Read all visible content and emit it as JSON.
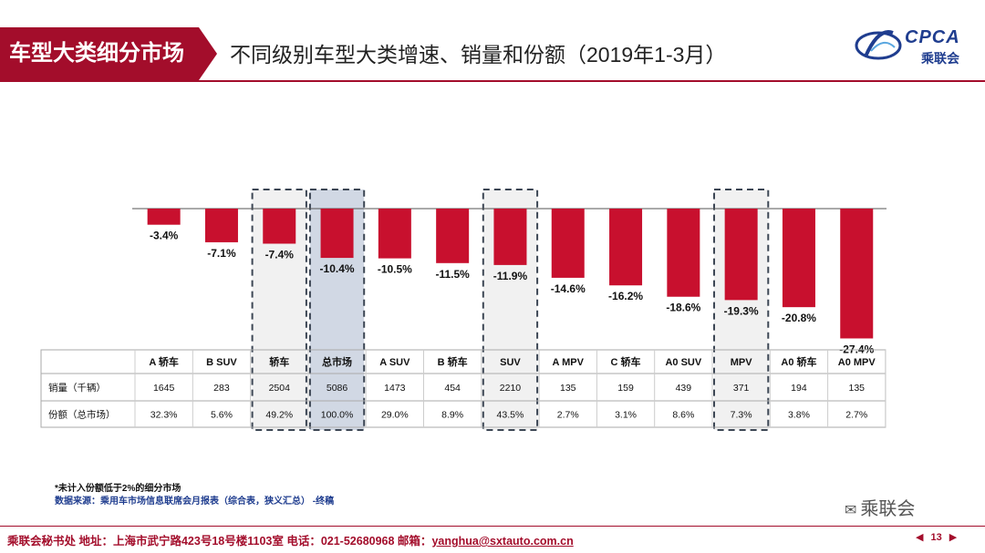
{
  "header": {
    "tag": "车型大类细分市场",
    "title": "不同级别车型大类增速、销量和份额（2019年1-3月）"
  },
  "logo": {
    "text": "CPCA",
    "sub": "乘联会",
    "brand_color": "#1f3d8f"
  },
  "chart_data": {
    "type": "bar",
    "title": "不同级别车型大类增速、销量和份额（2019年1-3月）",
    "categories": [
      "A 轿车",
      "B SUV",
      "轿车",
      "总市场",
      "A SUV",
      "B 轿车",
      "SUV",
      "A MPV",
      "C 轿车",
      "A0 SUV",
      "MPV",
      "A0 轿车",
      "A0 MPV"
    ],
    "values": [
      -3.4,
      -7.1,
      -7.4,
      -10.4,
      -10.5,
      -11.5,
      -11.9,
      -14.6,
      -16.2,
      -18.6,
      -19.3,
      -20.8,
      -27.4
    ],
    "value_labels": [
      "-3.4%",
      "-7.1%",
      "-7.4%",
      "-10.4%",
      "-10.5%",
      "-11.5%",
      "-11.9%",
      "-14.6%",
      "-16.2%",
      "-18.6%",
      "-19.3%",
      "-20.8%",
      "-27.4%"
    ],
    "ylim": [
      -30,
      0
    ],
    "bar_color": "#c8102e",
    "highlight": [
      "轿车",
      "总市场",
      "SUV",
      "MPV"
    ],
    "table_rows": [
      {
        "label": "销量（千辆）",
        "values": [
          "1645",
          "283",
          "2504",
          "5086",
          "1473",
          "454",
          "2210",
          "135",
          "159",
          "439",
          "371",
          "194",
          "135"
        ]
      },
      {
        "label": "份额（总市场）",
        "values": [
          "32.3%",
          "5.6%",
          "49.2%",
          "100.0%",
          "29.0%",
          "8.9%",
          "43.5%",
          "2.7%",
          "3.1%",
          "8.6%",
          "7.3%",
          "3.8%",
          "2.7%"
        ]
      }
    ]
  },
  "notes": {
    "line1": "*未计入份额低于2%的细分市场",
    "line2": "数据来源：乘用车市场信息联席会月报表（综合表，狭义汇总）   -终稿"
  },
  "wechat": {
    "label": "乘联会"
  },
  "footer": {
    "text": "乘联会秘书处   地址：上海市武宁路423号18号楼1103室  电话：021-52680968   邮箱：",
    "email": "yanghua@sxtauto.com.cn"
  },
  "pager": {
    "page": "13",
    "prev": "◀",
    "next": "▶"
  }
}
